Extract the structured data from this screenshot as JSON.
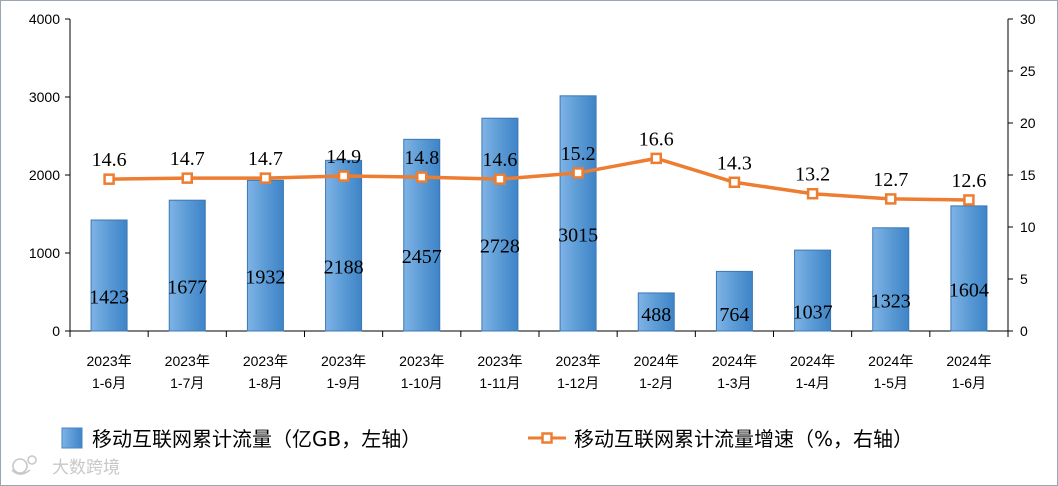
{
  "chart_data": {
    "type": "bar+line",
    "categories": [
      [
        "2023年",
        "1-6月"
      ],
      [
        "2023年",
        "1-7月"
      ],
      [
        "2023年",
        "1-8月"
      ],
      [
        "2023年",
        "1-9月"
      ],
      [
        "2023年",
        "1-10月"
      ],
      [
        "2023年",
        "1-11月"
      ],
      [
        "2023年",
        "1-12月"
      ],
      [
        "2024年",
        "1-2月"
      ],
      [
        "2024年",
        "1-3月"
      ],
      [
        "2024年",
        "1-4月"
      ],
      [
        "2024年",
        "1-5月"
      ],
      [
        "2024年",
        "1-6月"
      ]
    ],
    "series": [
      {
        "name": "移动互联网累计流量（亿GB，左轴）",
        "type": "bar",
        "axis": "left",
        "color": "#5b9bd5",
        "values": [
          1423,
          1677,
          1932,
          2188,
          2457,
          2728,
          3015,
          488,
          764,
          1037,
          1323,
          1604
        ]
      },
      {
        "name": "移动互联网累计流量增速（%，右轴）",
        "type": "line",
        "axis": "right",
        "color": "#ed7d31",
        "values": [
          14.6,
          14.7,
          14.7,
          14.9,
          14.8,
          14.6,
          15.2,
          16.6,
          14.3,
          13.2,
          12.7,
          12.6
        ]
      }
    ],
    "left_axis": {
      "ylim": [
        0,
        4000
      ],
      "ticks": [
        "0",
        "1000",
        "2000",
        "3000",
        "4000"
      ]
    },
    "right_axis": {
      "ylim": [
        0,
        30
      ],
      "ticks": [
        "0",
        "5",
        "10",
        "15",
        "20",
        "25",
        "30"
      ]
    },
    "grid": false,
    "legend_position": "bottom"
  },
  "watermark": {
    "icon": "sparkle-logo-icon",
    "text": "大数跨境"
  }
}
